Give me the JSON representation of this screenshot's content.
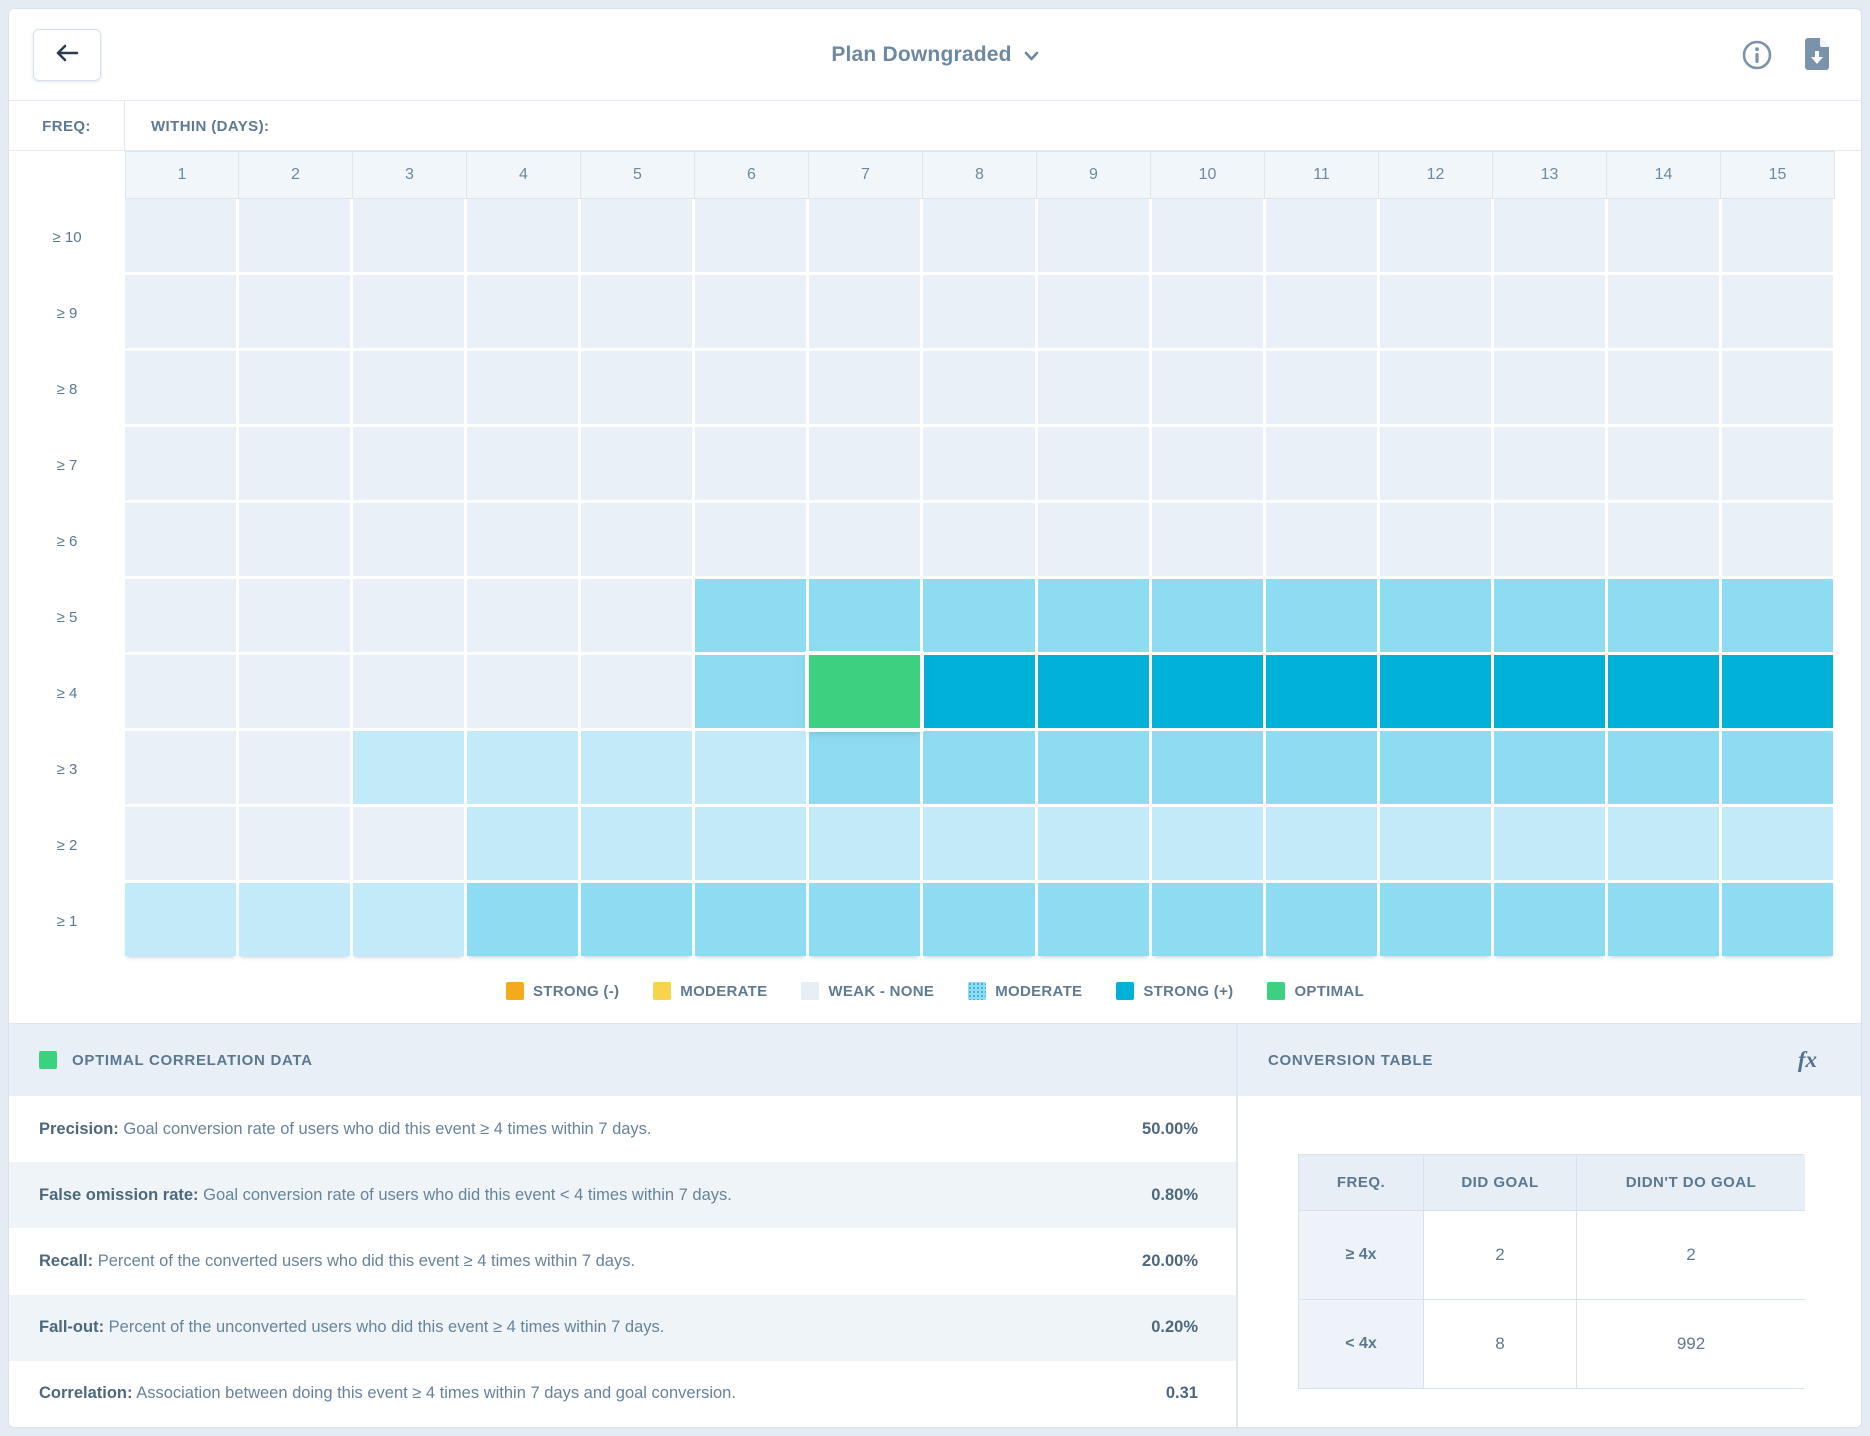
{
  "top_bar": {
    "title": "Plan Downgraded"
  },
  "axis": {
    "freq_label": "FREQ:",
    "within_label": "WITHIN (DAYS):",
    "columns": [
      "1",
      "2",
      "3",
      "4",
      "5",
      "6",
      "7",
      "8",
      "9",
      "10",
      "11",
      "12",
      "13",
      "14",
      "15"
    ],
    "rows": [
      "≥ 10",
      "≥ 9",
      "≥ 8",
      "≥ 7",
      "≥ 6",
      "≥ 5",
      "≥ 4",
      "≥ 3",
      "≥ 2",
      "≥ 1"
    ]
  },
  "colors": {
    "none": "#e9f0f8",
    "weak": "#c3eaf8",
    "moderate": "#8edcf2",
    "strong": "#02b1d8",
    "optimal": "#3bd180",
    "legend_orange": "#f5a91d",
    "legend_yellow": "#f8d44c",
    "legend_pale": "#e6eef6"
  },
  "chart_data": {
    "type": "heatmap",
    "title": "Plan Downgraded",
    "xlabel": "WITHIN (DAYS)",
    "ylabel": "FREQ",
    "x": [
      1,
      2,
      3,
      4,
      5,
      6,
      7,
      8,
      9,
      10,
      11,
      12,
      13,
      14,
      15
    ],
    "y": [
      "≥ 10",
      "≥ 9",
      "≥ 8",
      "≥ 7",
      "≥ 6",
      "≥ 5",
      "≥ 4",
      "≥ 3",
      "≥ 2",
      "≥ 1"
    ],
    "grid": [
      [
        "none",
        "none",
        "none",
        "none",
        "none",
        "none",
        "none",
        "none",
        "none",
        "none",
        "none",
        "none",
        "none",
        "none",
        "none"
      ],
      [
        "none",
        "none",
        "none",
        "none",
        "none",
        "none",
        "none",
        "none",
        "none",
        "none",
        "none",
        "none",
        "none",
        "none",
        "none"
      ],
      [
        "none",
        "none",
        "none",
        "none",
        "none",
        "none",
        "none",
        "none",
        "none",
        "none",
        "none",
        "none",
        "none",
        "none",
        "none"
      ],
      [
        "none",
        "none",
        "none",
        "none",
        "none",
        "none",
        "none",
        "none",
        "none",
        "none",
        "none",
        "none",
        "none",
        "none",
        "none"
      ],
      [
        "none",
        "none",
        "none",
        "none",
        "none",
        "none",
        "none",
        "none",
        "none",
        "none",
        "none",
        "none",
        "none",
        "none",
        "none"
      ],
      [
        "none",
        "none",
        "none",
        "none",
        "none",
        "moderate",
        "moderate",
        "moderate",
        "moderate",
        "moderate",
        "moderate",
        "moderate",
        "moderate",
        "moderate",
        "moderate"
      ],
      [
        "none",
        "none",
        "none",
        "none",
        "none",
        "moderate",
        "optimal",
        "strong",
        "strong",
        "strong",
        "strong",
        "strong",
        "strong",
        "strong",
        "strong"
      ],
      [
        "none",
        "none",
        "weak",
        "weak",
        "weak",
        "weak",
        "moderate",
        "moderate",
        "moderate",
        "moderate",
        "moderate",
        "moderate",
        "moderate",
        "moderate",
        "moderate"
      ],
      [
        "none",
        "none",
        "none",
        "weak",
        "weak",
        "weak",
        "weak",
        "weak",
        "weak",
        "weak",
        "weak",
        "weak",
        "weak",
        "weak",
        "weak"
      ],
      [
        "weak",
        "weak",
        "weak",
        "moderate",
        "moderate",
        "moderate",
        "moderate",
        "moderate",
        "moderate",
        "moderate",
        "moderate",
        "moderate",
        "moderate",
        "moderate",
        "moderate"
      ]
    ],
    "selected_cell": {
      "freq": "≥ 4",
      "within_days": 7,
      "level": "optimal",
      "correlation": 0.31
    }
  },
  "legend": [
    {
      "label": "STRONG (-)",
      "color": "#f5a91d",
      "texture": "solid"
    },
    {
      "label": "MODERATE",
      "color": "#f8d44c",
      "texture": "solid"
    },
    {
      "label": "WEAK - NONE",
      "color": "#e6eef6",
      "texture": "solid"
    },
    {
      "label": "MODERATE",
      "color": "#8edcf2",
      "texture": "dots"
    },
    {
      "label": "STRONG (+)",
      "color": "#02b1d8",
      "texture": "solid"
    },
    {
      "label": "OPTIMAL",
      "color": "#3bd180",
      "texture": "solid"
    }
  ],
  "panels": {
    "optimal": {
      "title": "OPTIMAL CORRELATION DATA",
      "stats": [
        {
          "label": "Precision:",
          "desc": "Goal conversion rate of users who did this event ≥ 4 times within 7 days.",
          "value": "50.00%"
        },
        {
          "label": "False omission rate:",
          "desc": "Goal conversion rate of users who did this event < 4 times within 7 days.",
          "value": "0.80%"
        },
        {
          "label": "Recall:",
          "desc": "Percent of the converted users who did this event ≥ 4 times within 7 days.",
          "value": "20.00%"
        },
        {
          "label": "Fall-out:",
          "desc": "Percent of the unconverted users who did this event ≥ 4 times within 7 days.",
          "value": "0.20%"
        },
        {
          "label": "Correlation:",
          "desc": "Association between doing this event ≥ 4 times within 7 days and goal conversion.",
          "value": "0.31"
        }
      ]
    },
    "conversion": {
      "title": "CONVERSION TABLE",
      "fx_label": "fx",
      "headers": [
        "FREQ.",
        "DID GOAL",
        "DIDN'T DO GOAL"
      ],
      "rows": [
        {
          "freq": "≥ 4x",
          "did": "2",
          "didnt": "2"
        },
        {
          "freq": "< 4x",
          "did": "8",
          "didnt": "992"
        }
      ]
    }
  }
}
